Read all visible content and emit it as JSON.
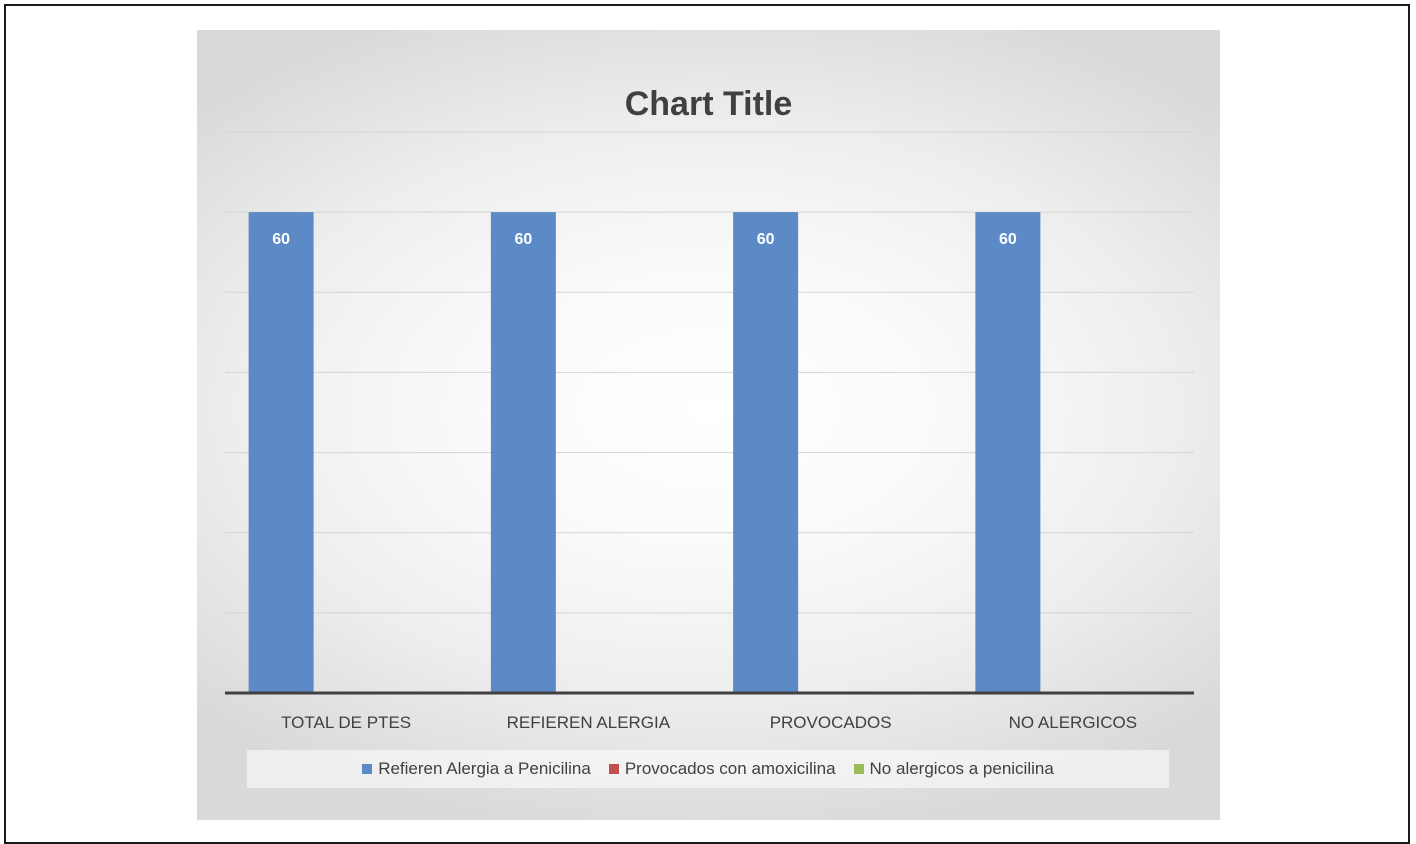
{
  "chart_data": {
    "type": "bar",
    "title": "Chart Title",
    "categories": [
      "TOTAL DE PTES",
      "REFIEREN ALERGIA",
      "PROVOCADOS",
      "NO ALERGICOS"
    ],
    "series": [
      {
        "name": "Refieren Alergia a Penicilina",
        "values": [
          60,
          60,
          60,
          60
        ],
        "color": "#5b8ac6"
      },
      {
        "name": "Provocados con amoxicilina",
        "values": [
          null,
          null,
          null,
          null
        ],
        "color": "#c0504d"
      },
      {
        "name": "No alergicos a penicilina",
        "values": [
          null,
          null,
          null,
          null
        ],
        "color": "#9bbb59"
      }
    ],
    "ylim": [
      0,
      70
    ],
    "grid": true,
    "legend": "bottom",
    "data_labels": true
  }
}
